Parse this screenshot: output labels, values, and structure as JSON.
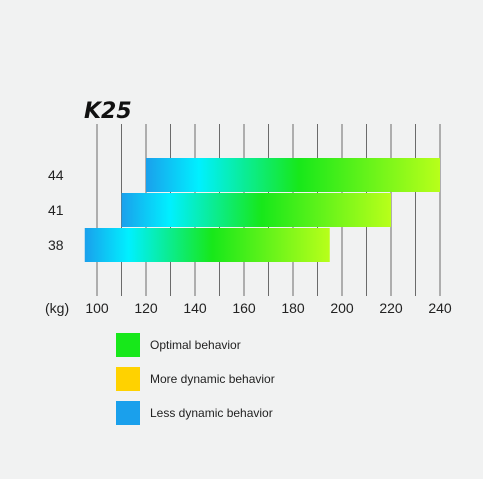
{
  "chart_data": {
    "type": "bar",
    "orientation": "horizontal",
    "title": "K25",
    "xlabel": "(kg)",
    "ylabel": "",
    "xlim": [
      95,
      241
    ],
    "xticks": [
      100,
      120,
      140,
      160,
      180,
      200,
      220,
      240
    ],
    "grid": true,
    "categories": [
      "44",
      "41",
      "38"
    ],
    "ranges": [
      {
        "category": "44",
        "start": 120,
        "end": 240
      },
      {
        "category": "41",
        "start": 110,
        "end": 220
      },
      {
        "category": "38",
        "start": 95,
        "end": 195
      }
    ],
    "legend_position": "bottom",
    "legend": [
      {
        "label": "Optimal behavior",
        "color": "#17e81a"
      },
      {
        "label": "More dynamic behavior",
        "color": "#ffd200"
      },
      {
        "label": "Less dynamic behavior",
        "color": "#1aa0ec"
      }
    ],
    "bar_gradient": [
      "#1aa0ec",
      "#00f0ff",
      "#17e81a",
      "#b8ff1a"
    ]
  }
}
